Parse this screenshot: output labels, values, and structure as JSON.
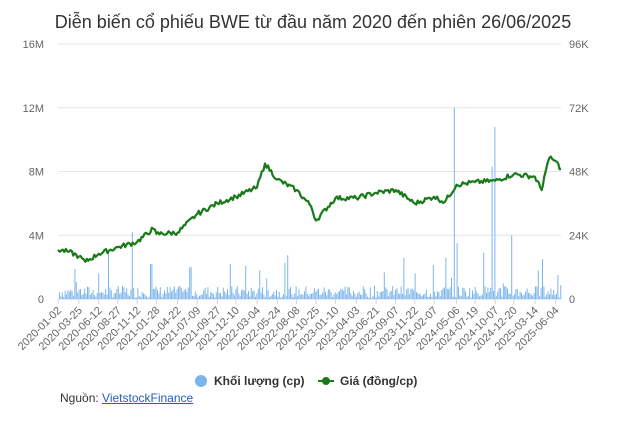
{
  "chart_data": {
    "type": "bar+line",
    "title": "Diễn biến cổ phiếu BWE từ đầu năm 2020 đến phiên 26/06/2025",
    "x_ticks": [
      "2020-01-02",
      "2020-03-25",
      "2020-06-12",
      "2020-08-27",
      "2020-11-12",
      "2021-01-28",
      "2021-04-22",
      "2021-07-09",
      "2021-09-27",
      "2021-12-10",
      "2022-03-04",
      "2022-05-24",
      "2022-08-08",
      "2022-10-25",
      "2023-01-10",
      "2023-04-03",
      "2023-06-21",
      "2023-09-07",
      "2023-11-22",
      "2024-02-07",
      "2024-05-06",
      "2024-07-19",
      "2024-10-07",
      "2024-12-20",
      "2025-03-14",
      "2025-06-04"
    ],
    "y_left": {
      "ticks": [
        "0",
        "4M",
        "8M",
        "12M",
        "16M"
      ],
      "values": [
        0,
        4000000,
        8000000,
        12000000,
        16000000
      ],
      "range": [
        0,
        16000000
      ]
    },
    "y_right": {
      "ticks": [
        "0",
        "24K",
        "48K",
        "72K",
        "96K"
      ],
      "values": [
        0,
        24000,
        48000,
        72000,
        96000
      ],
      "range": [
        0,
        96000
      ]
    },
    "x_range": [
      "2020-01-02",
      "2025-06-26"
    ],
    "grid": true,
    "legend_position": "bottom",
    "series": [
      {
        "name": "Khối lượng (cp)",
        "kind": "bar",
        "axis": "left",
        "color": "#7cb5ec",
        "baseline_level": 500000,
        "spikes": [
          {
            "date": "2020-10-20",
            "value": 4200000
          },
          {
            "date": "2021-01-05",
            "value": 2200000
          },
          {
            "date": "2021-06-10",
            "value": 2000000
          },
          {
            "date": "2022-03-15",
            "value": 1800000
          },
          {
            "date": "2024-03-25",
            "value": 2600000
          },
          {
            "date": "2024-04-25",
            "value": 12000000
          },
          {
            "date": "2024-05-05",
            "value": 3500000
          },
          {
            "date": "2024-08-20",
            "value": 2900000
          },
          {
            "date": "2024-09-25",
            "value": 8300000
          },
          {
            "date": "2024-10-05",
            "value": 10800000
          },
          {
            "date": "2024-12-10",
            "value": 4000000
          },
          {
            "date": "2025-04-10",
            "value": 2500000
          },
          {
            "date": "2025-06-10",
            "value": 1500000
          }
        ]
      },
      {
        "name": "Giá (đồng/cp)",
        "kind": "line",
        "axis": "right",
        "color": "#1a7a1a",
        "points": [
          [
            "2020-01-02",
            18500
          ],
          [
            "2020-02-15",
            17800
          ],
          [
            "2020-03-25",
            16000
          ],
          [
            "2020-04-20",
            14000
          ],
          [
            "2020-06-12",
            17000
          ],
          [
            "2020-08-27",
            19500
          ],
          [
            "2020-11-12",
            21500
          ],
          [
            "2021-01-15",
            26500
          ],
          [
            "2021-01-28",
            24500
          ],
          [
            "2021-04-22",
            25000
          ],
          [
            "2021-07-09",
            32000
          ],
          [
            "2021-09-27",
            36000
          ],
          [
            "2021-12-10",
            38500
          ],
          [
            "2022-03-04",
            42000
          ],
          [
            "2022-04-05",
            51000
          ],
          [
            "2022-05-24",
            45000
          ],
          [
            "2022-08-08",
            41000
          ],
          [
            "2022-10-05",
            35000
          ],
          [
            "2022-10-25",
            29500
          ],
          [
            "2023-01-10",
            38000
          ],
          [
            "2023-04-03",
            38000
          ],
          [
            "2023-06-21",
            40000
          ],
          [
            "2023-09-07",
            41000
          ],
          [
            "2023-11-22",
            36000
          ],
          [
            "2024-02-07",
            38500
          ],
          [
            "2024-03-20",
            36500
          ],
          [
            "2024-05-06",
            43000
          ],
          [
            "2024-07-19",
            44000
          ],
          [
            "2024-10-07",
            44500
          ],
          [
            "2024-12-20",
            47000
          ],
          [
            "2025-03-14",
            46000
          ],
          [
            "2025-04-10",
            41000
          ],
          [
            "2025-04-20",
            46000
          ],
          [
            "2025-05-10",
            53000
          ],
          [
            "2025-06-04",
            52000
          ],
          [
            "2025-06-26",
            49000
          ]
        ]
      }
    ]
  },
  "source": {
    "label": "Nguồn: ",
    "link": "VietstockFinance"
  }
}
